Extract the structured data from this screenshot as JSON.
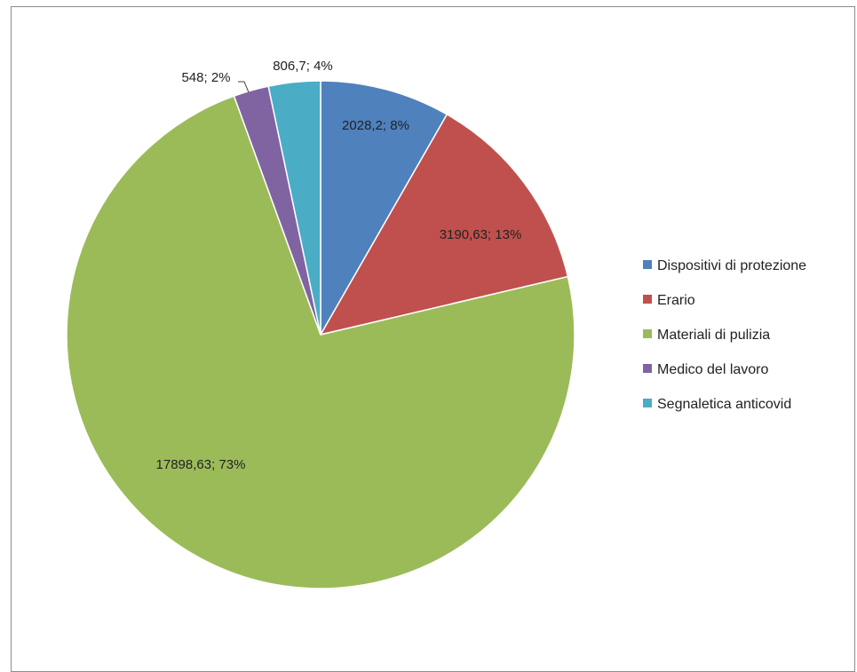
{
  "chart_data": {
    "type": "pie",
    "title": "",
    "legend_position": "right",
    "slices": [
      {
        "name": "Dispositivi di protezione",
        "value": 2028.2,
        "percent": 8,
        "label": "2028,2; 8%",
        "color": "#4f81bd"
      },
      {
        "name": "Erario",
        "value": 3190.63,
        "percent": 13,
        "label": "3190,63; 13%",
        "color": "#c0504d"
      },
      {
        "name": "Materiali di pulizia",
        "value": 17898.63,
        "percent": 73,
        "label": "17898,63; 73%",
        "color": "#9bbb59"
      },
      {
        "name": "Medico del lavoro",
        "value": 548,
        "percent": 2,
        "label": "548; 2%",
        "color": "#8064a2"
      },
      {
        "name": "Segnaletica anticovid",
        "value": 806.7,
        "percent": 4,
        "label": "806,7; 4%",
        "color": "#4bacc6"
      }
    ]
  }
}
